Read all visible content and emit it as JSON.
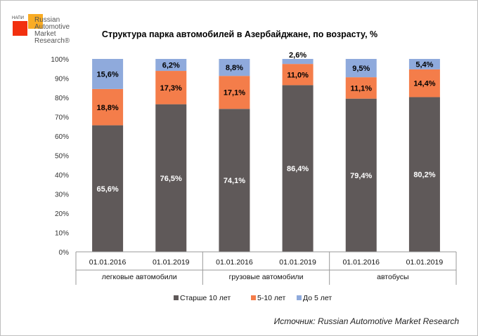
{
  "logo": {
    "small": "НАПИ",
    "lines": [
      "Russian",
      "Automotive",
      "Market",
      "Research®"
    ]
  },
  "source": "Источник: Russian Automotive Market Research",
  "chart_data": {
    "type": "bar",
    "stacked": true,
    "title": "Структура парка автомобилей в Азербайджане, по возрасту, %",
    "groups": [
      "легковые автомобили",
      "грузовые автомобили",
      "автобусы"
    ],
    "categories": [
      "01.01.2016",
      "01.01.2019",
      "01.01.2016",
      "01.01.2019",
      "01.01.2016",
      "01.01.2019"
    ],
    "series": [
      {
        "name": "Старше 10 лет",
        "color": "#5f5959",
        "values": [
          65.6,
          76.5,
          74.1,
          86.4,
          79.4,
          80.2
        ],
        "labels": [
          "65,6%",
          "76,5%",
          "74,1%",
          "86,4%",
          "79,4%",
          "80,2%"
        ]
      },
      {
        "name": "5-10 лет",
        "color": "#f47d4a",
        "values": [
          18.8,
          17.3,
          17.1,
          11.0,
          11.1,
          14.4
        ],
        "labels": [
          "18,8%",
          "17,3%",
          "17,1%",
          "11,0%",
          "11,1%",
          "14,4%"
        ]
      },
      {
        "name": "До 5 лет",
        "color": "#8faadc",
        "values": [
          15.6,
          6.2,
          8.8,
          2.6,
          9.5,
          5.4
        ],
        "labels": [
          "15,6%",
          "6,2%",
          "8,8%",
          "2,6%",
          "9,5%",
          "5,4%"
        ]
      }
    ],
    "yticks": [
      "0%",
      "10%",
      "20%",
      "30%",
      "40%",
      "50%",
      "60%",
      "70%",
      "80%",
      "90%",
      "100%"
    ],
    "ylim": [
      0,
      100
    ],
    "grid": false,
    "legend": "bottom"
  }
}
